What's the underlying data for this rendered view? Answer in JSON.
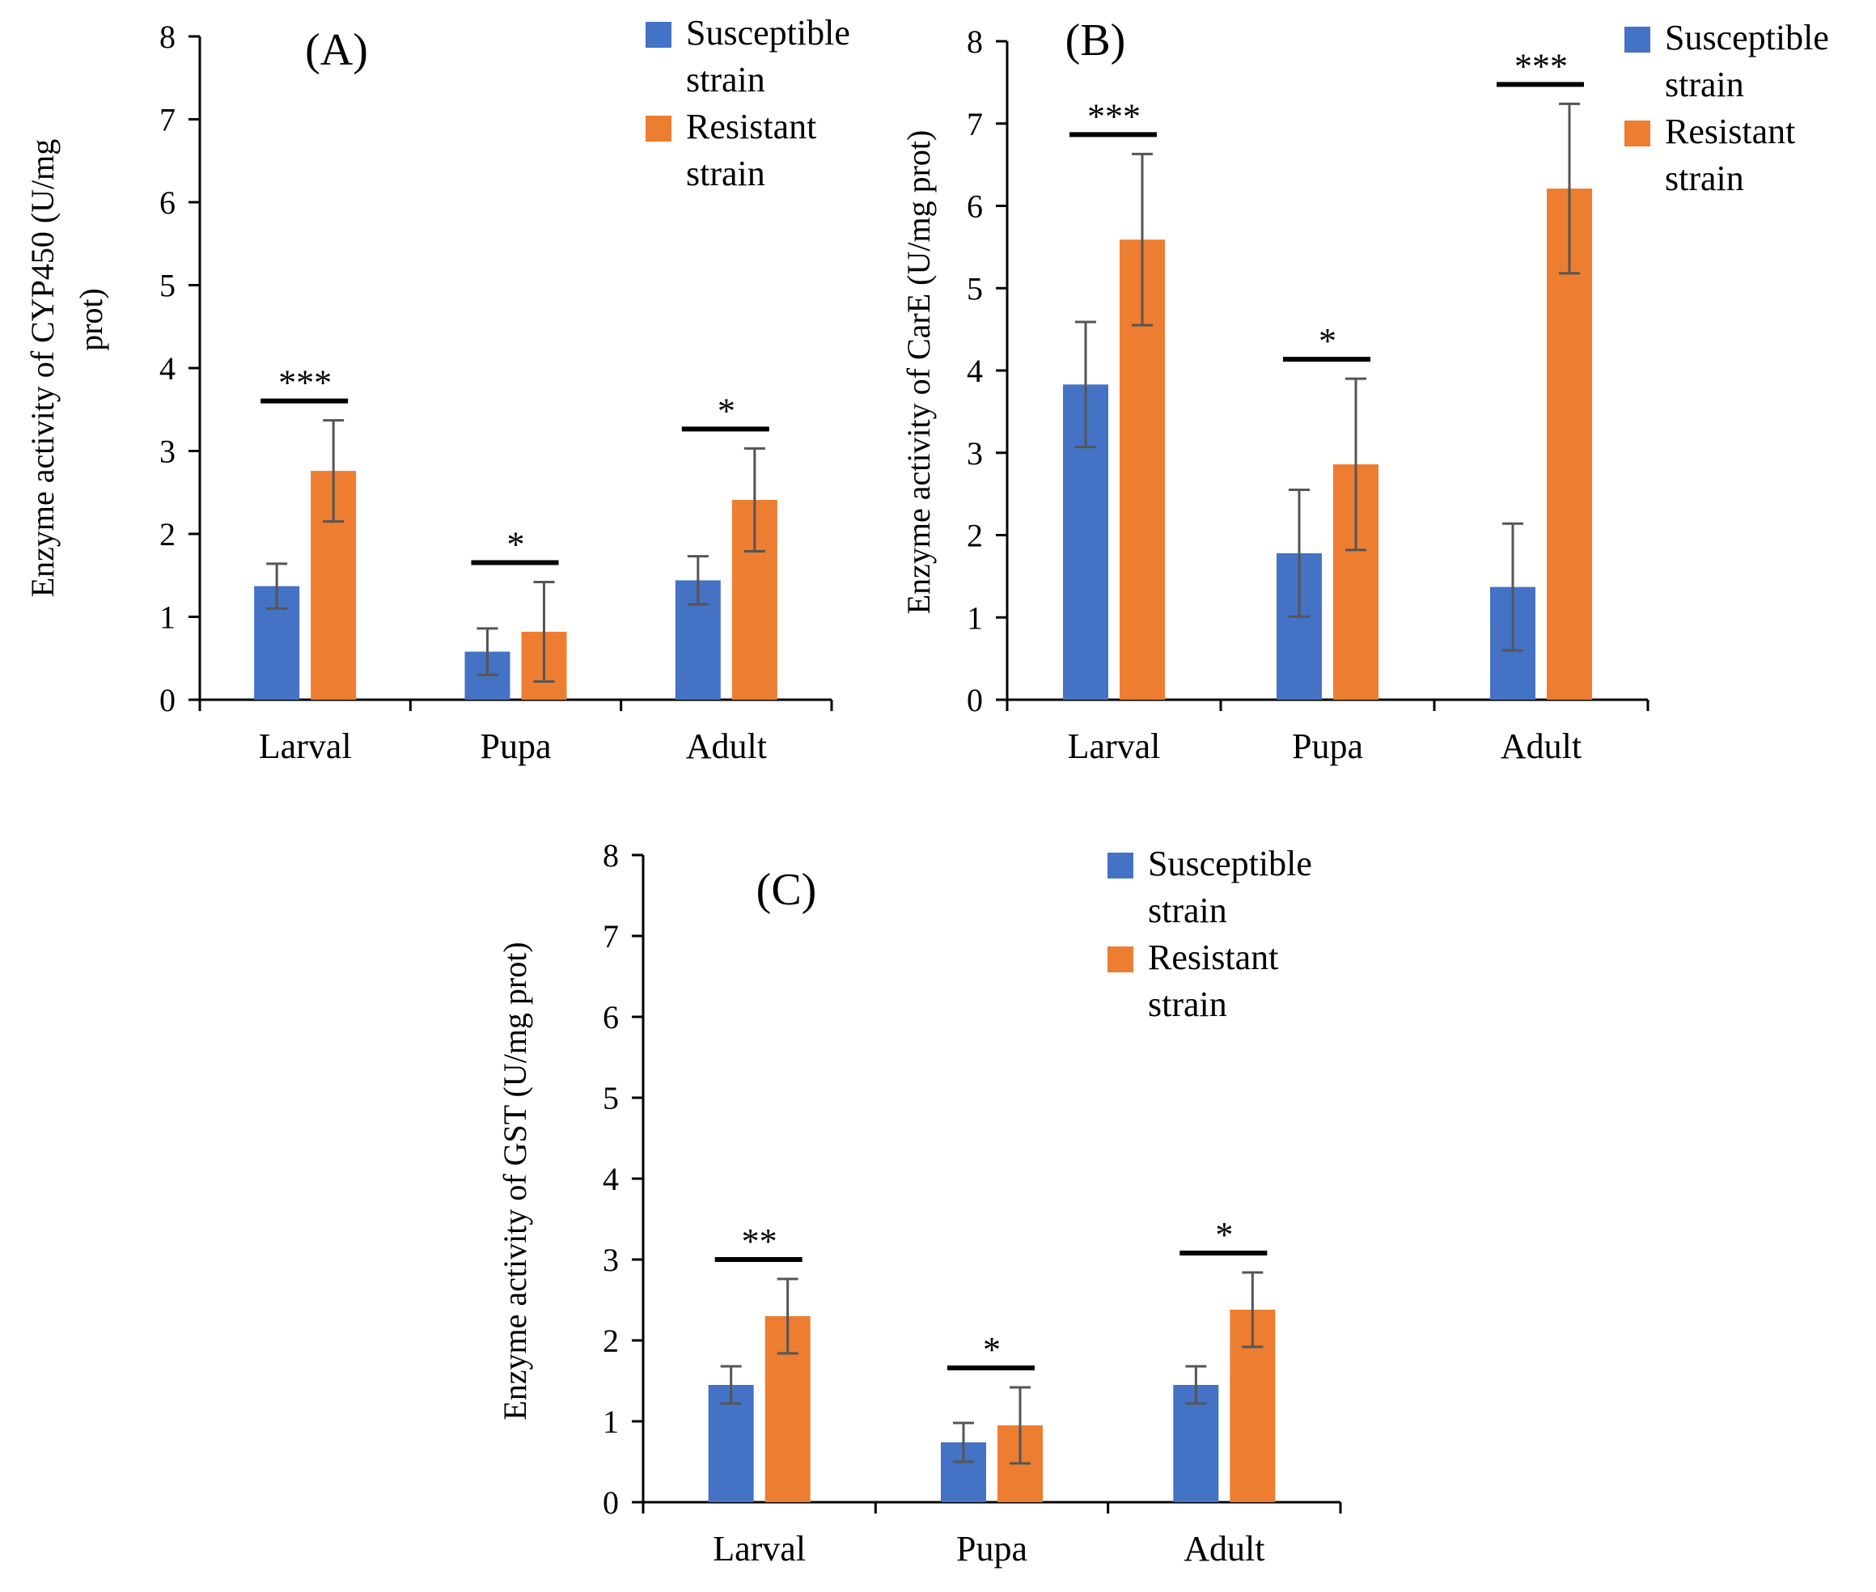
{
  "colors": {
    "susceptible": "#4472C4",
    "resistant": "#ED7D31"
  },
  "chart_data": [
    {
      "type": "bar",
      "title": "(A)",
      "xlabel": "",
      "ylabel_lines": [
        "Enzyme activity of CYP450 (U/mg",
        "prot)"
      ],
      "ylim": [
        0,
        8
      ],
      "yticks": [
        "0",
        "1",
        "2",
        "3",
        "4",
        "5",
        "6",
        "7",
        "8"
      ],
      "categories": [
        "Larval",
        "Pupa",
        "Adult"
      ],
      "series": [
        {
          "name": "Susceptible strain",
          "legend_lines": [
            "Susceptible",
            "strain"
          ],
          "values": [
            1.37,
            0.58,
            1.44
          ],
          "errors": [
            0.27,
            0.28,
            0.29
          ]
        },
        {
          "name": "Resistant strain",
          "legend_lines": [
            "Resistant",
            "strain"
          ],
          "values": [
            2.76,
            0.82,
            2.41
          ],
          "errors": [
            0.61,
            0.6,
            0.62
          ]
        }
      ],
      "significance": [
        "***",
        "*",
        "*"
      ]
    },
    {
      "type": "bar",
      "title": "(B)",
      "xlabel": "",
      "ylabel_lines": [
        "Enzyme activity of CarE (U/mg prot)"
      ],
      "ylim": [
        0,
        8
      ],
      "yticks": [
        "0",
        "1",
        "2",
        "3",
        "4",
        "5",
        "6",
        "7",
        "8"
      ],
      "categories": [
        "Larval",
        "Pupa",
        "Adult"
      ],
      "series": [
        {
          "name": "Susceptible strain",
          "legend_lines": [
            "Susceptible",
            "strain"
          ],
          "values": [
            3.83,
            1.78,
            1.37
          ],
          "errors": [
            0.76,
            0.77,
            0.77
          ]
        },
        {
          "name": "Resistant strain",
          "legend_lines": [
            "Resistant",
            "strain"
          ],
          "values": [
            5.59,
            2.86,
            6.21
          ],
          "errors": [
            1.04,
            1.04,
            1.03
          ]
        }
      ],
      "significance": [
        "***",
        "*",
        "***"
      ]
    },
    {
      "type": "bar",
      "title": "(C)",
      "xlabel": "",
      "ylabel_lines": [
        "Enzyme activity of GST (U/mg prot)"
      ],
      "ylim": [
        0,
        8
      ],
      "yticks": [
        "0",
        "1",
        "2",
        "3",
        "4",
        "5",
        "6",
        "7",
        "8"
      ],
      "categories": [
        "Larval",
        "Pupa",
        "Adult"
      ],
      "series": [
        {
          "name": "Susceptible strain",
          "legend_lines": [
            "Susceptible",
            "strain"
          ],
          "values": [
            1.45,
            0.74,
            1.45
          ],
          "errors": [
            0.23,
            0.24,
            0.23
          ]
        },
        {
          "name": "Resistant strain",
          "legend_lines": [
            "Resistant",
            "strain"
          ],
          "values": [
            2.3,
            0.95,
            2.38
          ],
          "errors": [
            0.46,
            0.47,
            0.46
          ]
        }
      ],
      "significance": [
        "**",
        "*",
        "*"
      ]
    }
  ]
}
